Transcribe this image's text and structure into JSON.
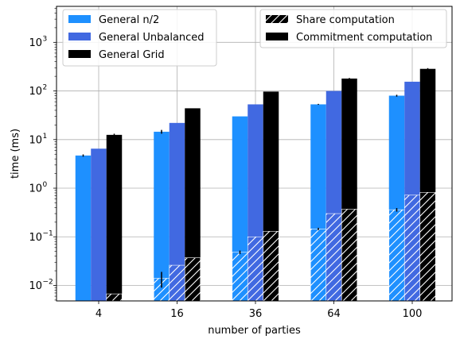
{
  "chart_data": {
    "type": "bar",
    "xlabel": "number of parties",
    "ylabel": "time (ms)",
    "yscale": "log",
    "ylim": [
      0.0048,
      5500
    ],
    "grid": true,
    "categories": [
      "4",
      "16",
      "36",
      "64",
      "100"
    ],
    "y_ticks": [
      {
        "value": 0.01,
        "label": "10",
        "exp": "−2"
      },
      {
        "value": 0.1,
        "label": "10",
        "exp": "−1"
      },
      {
        "value": 1,
        "label": "10",
        "exp": "0"
      },
      {
        "value": 10,
        "label": "10",
        "exp": "1"
      },
      {
        "value": 100,
        "label": "10",
        "exp": "2"
      },
      {
        "value": 1000,
        "label": "10",
        "exp": "3"
      }
    ],
    "series": [
      {
        "name": "General n/2",
        "color": "#1E90FF",
        "total": [
          4.7,
          14.5,
          30,
          53,
          80
        ],
        "total_err": [
          0.25,
          1.3,
          0,
          1.2,
          3.5
        ],
        "share": [
          null,
          0.014,
          0.048,
          0.145,
          0.36
        ],
        "share_err": [
          0,
          0.005,
          0.004,
          0.008,
          0.03
        ]
      },
      {
        "name": "General Unbalanced",
        "color": "#4169E1",
        "total": [
          6.5,
          22,
          53,
          100,
          155
        ],
        "total_err": [
          0,
          0,
          0,
          0,
          0
        ],
        "share": [
          null,
          0.026,
          0.1,
          0.3,
          0.72
        ],
        "share_err": [
          0,
          0,
          0,
          0,
          0
        ]
      },
      {
        "name": "General Grid",
        "color": "#000000",
        "total": [
          12.5,
          44,
          97,
          180,
          285
        ],
        "total_err": [
          0.7,
          0,
          0,
          5,
          10
        ],
        "share": [
          0.0067,
          0.037,
          0.13,
          0.37,
          0.82
        ],
        "share_err": [
          0,
          0,
          0,
          0,
          0
        ]
      }
    ],
    "legend_left": [
      "General n/2",
      "General Unbalanced",
      "General Grid"
    ],
    "legend_right": [
      "Share computation",
      "Commitment computation"
    ],
    "legend_placement": [
      "top-left",
      "top-right"
    ]
  }
}
